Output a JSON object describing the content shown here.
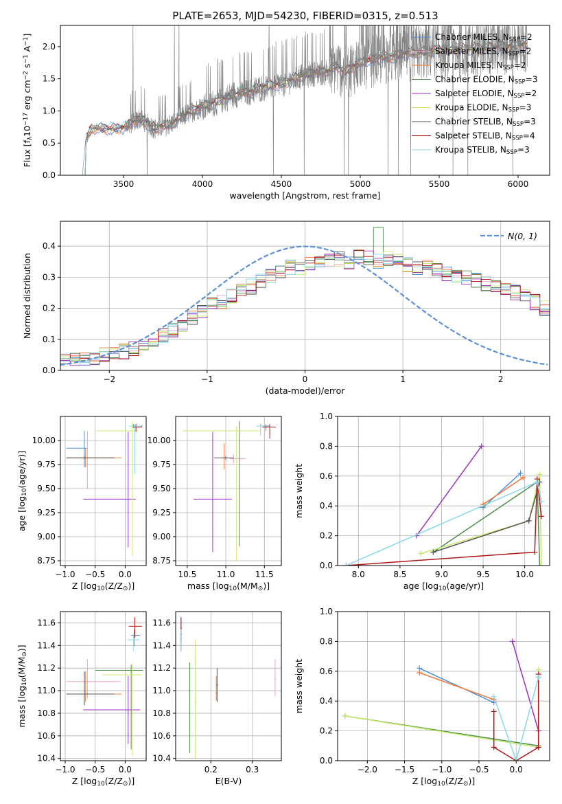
{
  "figure_title": "PLATE=2653, MJD=54230, FIBERID=0315, z=0.513",
  "model_colors": [
    "#4a90d9",
    "#e8a0c0",
    "#f07f3a",
    "#4f8f4f",
    "#9b30c0",
    "#c8e86a",
    "#555555",
    "#b01515",
    "#88d8e8"
  ],
  "model_names": [
    "Chabrier MILES, N$SSP$=2",
    "Salpeter MILES, N$SSP$=2",
    "Kroupa MILES, N$SSP$=2",
    "Chabrier ELODIE, N$SSP$=3",
    "Salpeter ELODIE, N$SSP$=2",
    "Kroupa ELODIE, N$SSP$=3",
    "Chabrier STELIB, N$SSP$=3",
    "Salpeter STELIB, N$SSP$=4",
    "Kroupa STELIB, N$SSP$=3"
  ],
  "chart_data": [
    {
      "id": "spectrum",
      "type": "line",
      "xlabel": "wavelength [Angstrom, rest frame]",
      "ylabel": "Flux [f$λ$10$-17$ erg cm$-2$ s$-1$ A$-1$]",
      "xlim": [
        3100,
        6200
      ],
      "ylim": [
        0,
        2.33
      ],
      "xticks": [
        3500,
        4000,
        4500,
        5000,
        5500,
        6000
      ],
      "yticks": [
        0.0,
        0.5,
        1.0,
        1.5,
        2.0
      ],
      "ytick_labels": [
        "0.0",
        "0.5",
        "1.0",
        "1.5",
        "2.0"
      ],
      "grid": false,
      "legend_position": "top-right",
      "continuum": {
        "x": [
          3240,
          3260,
          3300,
          3400,
          3500,
          3600,
          3650,
          3700,
          3800,
          3900,
          4000,
          4100,
          4200,
          4300,
          4400,
          4500,
          4600,
          4700,
          4800,
          4850,
          4900,
          5000,
          5100,
          5200,
          5300,
          5400,
          5500,
          5600,
          5700,
          5800,
          5900,
          6000,
          6060
        ],
        "y": [
          0.0,
          0.55,
          0.73,
          0.72,
          0.74,
          0.88,
          0.82,
          0.72,
          0.8,
          0.95,
          1.07,
          1.15,
          1.26,
          1.3,
          1.38,
          1.42,
          1.52,
          1.6,
          1.62,
          1.7,
          1.6,
          1.75,
          1.82,
          1.85,
          1.9,
          1.92,
          1.95,
          1.95,
          1.97,
          1.98,
          2.0,
          2.02,
          2.02
        ]
      },
      "data_range": [
        3520,
        6060
      ],
      "models_range": [
        3520,
        6060
      ]
    },
    {
      "id": "residuals",
      "type": "step",
      "xlabel": "(data-model)/error",
      "ylabel": "Normed distribution",
      "xlim": [
        -2.5,
        2.5
      ],
      "ylim": [
        0,
        0.48
      ],
      "xticks": [
        -2,
        -1,
        0,
        1,
        2
      ],
      "xtick_labels": [
        "−2",
        "−1",
        "0",
        "1",
        "2"
      ],
      "yticks": [
        0.0,
        0.1,
        0.2,
        0.3,
        0.4
      ],
      "ytick_labels": [
        "0.0",
        "0.1",
        "0.2",
        "0.3",
        "0.4"
      ],
      "grid": true,
      "legend": "$N$(0, 1)",
      "legend_position": "top-right",
      "bin_width": 0.1,
      "hist_values": [
        0.03,
        0.03,
        0.035,
        0.04,
        0.05,
        0.055,
        0.06,
        0.07,
        0.08,
        0.095,
        0.11,
        0.13,
        0.15,
        0.17,
        0.19,
        0.21,
        0.22,
        0.24,
        0.26,
        0.27,
        0.29,
        0.3,
        0.32,
        0.33,
        0.33,
        0.34,
        0.35,
        0.35,
        0.36,
        0.35,
        0.37,
        0.36,
        0.35,
        0.36,
        0.35,
        0.34,
        0.33,
        0.33,
        0.32,
        0.31,
        0.3,
        0.3,
        0.29,
        0.28,
        0.27,
        0.26,
        0.25,
        0.24,
        0.22,
        0.2
      ]
    },
    {
      "id": "age-vs-z",
      "type": "errorbar",
      "xlabel": "Z [log$10$(Z/Z$⊙$)]",
      "ylabel": "age  [log$10$(age/yr)]",
      "xlim": [
        -1.08,
        0.35
      ],
      "ylim": [
        8.7,
        10.25
      ],
      "xticks": [
        -1.0,
        -0.5,
        0.0
      ],
      "xtick_labels": [
        "−1.0",
        "−0.5",
        "0.0"
      ],
      "yticks": [
        8.75,
        9.0,
        9.25,
        9.5,
        9.75,
        10.0
      ],
      "ytick_labels": [
        "8.75",
        "9.00",
        "9.25",
        "9.50",
        "9.75",
        "10.00"
      ],
      "grid": true,
      "points": [
        {
          "m": 0,
          "x": -0.68,
          "y": 9.92,
          "xe": [
            0.3,
            0.04
          ],
          "ye": [
            0.2,
            0.18
          ]
        },
        {
          "m": 1,
          "x": -0.63,
          "y": 9.75,
          "xe": [
            0.04,
            0.04
          ],
          "ye": [
            0.25,
            0.35
          ]
        },
        {
          "m": 2,
          "x": -0.66,
          "y": 9.82,
          "xe": [
            0.32,
            0.6
          ],
          "ye": [
            0.1,
            0.1
          ]
        },
        {
          "m": 3,
          "x": 0.14,
          "y": 10.15,
          "xe": [
            0.05,
            0.15
          ],
          "ye": [
            0.02,
            0.02
          ]
        },
        {
          "m": 4,
          "x": 0.05,
          "y": 9.39,
          "xe": [
            0.75,
            0.13
          ],
          "ye": [
            0.5,
            0.7
          ]
        },
        {
          "m": 5,
          "x": 0.12,
          "y": 10.1,
          "xe": [
            0.6,
            0.1
          ],
          "ye": [
            1.3,
            0.1
          ]
        },
        {
          "m": 6,
          "x": -0.68,
          "y": 9.82,
          "xe": [
            0.3,
            0.5
          ],
          "ye": [
            0.02,
            0.02
          ]
        },
        {
          "m": 7,
          "x": 0.18,
          "y": 10.14,
          "xe": [
            0.05,
            0.1
          ],
          "ye": [
            0.05,
            0.03
          ]
        },
        {
          "m": 8,
          "x": 0.16,
          "y": 10.15,
          "xe": [
            0.1,
            0.1
          ],
          "ye": [
            0.5,
            0.02
          ]
        }
      ]
    },
    {
      "id": "age-vs-mass",
      "type": "errorbar",
      "xlabel": "mass [log$10$(M/M$⊙$)]",
      "ylabel": "",
      "xlim": [
        10.35,
        11.72
      ],
      "ylim": [
        8.7,
        10.25
      ],
      "xticks": [
        10.5,
        11.0,
        11.5
      ],
      "xtick_labels": [
        "10.5",
        "11.0",
        "11.5"
      ],
      "yticks": [
        8.75,
        9.0,
        9.25,
        9.5,
        9.75,
        10.0
      ],
      "ytick_labels": [
        "8.75",
        "9.00",
        "9.25",
        "9.50",
        "9.75",
        "10.00"
      ],
      "grid": true,
      "points": [
        {
          "m": 0,
          "x": 11.52,
          "y": 10.15,
          "xe": [
            0.1,
            0.05
          ],
          "ye": [
            0.05,
            0.02
          ]
        },
        {
          "m": 1,
          "x": 11.1,
          "y": 9.81,
          "xe": [
            0.05,
            0.15
          ],
          "ye": [
            0.05,
            0.05
          ]
        },
        {
          "m": 2,
          "x": 10.98,
          "y": 9.82,
          "xe": [
            0.03,
            0.03
          ],
          "ye": [
            0.12,
            0.15
          ]
        },
        {
          "m": 3,
          "x": 11.18,
          "y": 10.1,
          "xe": [
            0.02,
            0.02
          ],
          "ye": [
            1.2,
            0.1
          ]
        },
        {
          "m": 4,
          "x": 10.83,
          "y": 9.39,
          "xe": [
            0.25,
            0.25
          ],
          "ye": [
            0.55,
            0.7
          ]
        },
        {
          "m": 5,
          "x": 11.14,
          "y": 10.1,
          "xe": [
            0.7,
            0.3
          ],
          "ye": [
            1.35,
            0.05
          ]
        },
        {
          "m": 6,
          "x": 11.0,
          "y": 9.82,
          "xe": [
            0.15,
            0.1
          ],
          "ye": [
            0.02,
            0.02
          ]
        },
        {
          "m": 7,
          "x": 11.57,
          "y": 10.14,
          "xe": [
            0.1,
            0.08
          ],
          "ye": [
            0.12,
            0.03
          ]
        },
        {
          "m": 8,
          "x": 11.45,
          "y": 10.15,
          "xe": [
            0.06,
            0.06
          ],
          "ye": [
            0.1,
            0.02
          ]
        }
      ]
    },
    {
      "id": "weight-vs-age",
      "type": "line",
      "xlabel": "age  [log$10$(age/yr)]",
      "ylabel": "mass weight",
      "xlim": [
        7.75,
        10.3
      ],
      "ylim": [
        0,
        1
      ],
      "xticks": [
        8.0,
        8.5,
        9.0,
        9.5,
        10.0
      ],
      "xtick_labels": [
        "8.0",
        "8.5",
        "9.0",
        "9.5",
        "10.0"
      ],
      "yticks": [
        0.0,
        0.2,
        0.4,
        0.6,
        0.8,
        1.0
      ],
      "ytick_labels": [
        "0.0",
        "0.2",
        "0.4",
        "0.6",
        "0.8",
        "1.0"
      ],
      "grid": true,
      "series": [
        {
          "m": 0,
          "x": [
            9.5,
            9.95
          ],
          "y": [
            0.39,
            0.62
          ]
        },
        {
          "m": 1,
          "x": [
            9.5,
            9.98
          ],
          "y": [
            0.41,
            0.59
          ]
        },
        {
          "m": 2,
          "x": [
            9.5,
            9.98
          ],
          "y": [
            0.41,
            0.59
          ]
        },
        {
          "m": 3,
          "x": [
            8.9,
            10.15,
            10.18
          ],
          "y": [
            0.09,
            0.56,
            0.0
          ]
        },
        {
          "m": 4,
          "x": [
            8.7,
            9.48
          ],
          "y": [
            0.2,
            0.8
          ]
        },
        {
          "m": 5,
          "x": [
            8.75,
            10.05,
            10.18,
            10.2
          ],
          "y": [
            0.08,
            0.3,
            0.61,
            0.0
          ]
        },
        {
          "m": 6,
          "x": [
            8.9,
            10.05,
            10.18
          ],
          "y": [
            0.09,
            0.3,
            0.56
          ]
        },
        {
          "m": 7,
          "x": [
            7.85,
            10.12,
            10.15,
            10.2
          ],
          "y": [
            0.0,
            0.09,
            0.58,
            0.33
          ]
        },
        {
          "m": 8,
          "x": [
            7.85,
            10.15,
            10.2
          ],
          "y": [
            0.0,
            0.56,
            0.43
          ]
        }
      ]
    },
    {
      "id": "mass-vs-z",
      "type": "errorbar",
      "xlabel": "Z [log$10$(Z/Z$⊙$)]",
      "ylabel": "mass [log$10$(M/M$⊙$)]",
      "xlim": [
        -1.08,
        0.35
      ],
      "ylim": [
        10.38,
        11.7
      ],
      "xticks": [
        -1.0,
        -0.5,
        0.0
      ],
      "xtick_labels": [
        "−1.0",
        "−0.5",
        "0.0"
      ],
      "yticks": [
        10.4,
        10.6,
        10.8,
        11.0,
        11.2,
        11.4,
        11.6
      ],
      "ytick_labels": [
        "10.4",
        "10.6",
        "10.8",
        "11.0",
        "11.2",
        "11.4",
        "11.6"
      ],
      "grid": true,
      "points": [
        {
          "m": 0,
          "x": 0.15,
          "y": 11.49,
          "xe": [
            0.05,
            0.1
          ],
          "ye": [
            0.1,
            0.05
          ]
        },
        {
          "m": 1,
          "x": -0.63,
          "y": 11.08,
          "xe": [
            0.35,
            0.55
          ],
          "ye": [
            0.15,
            0.2
          ]
        },
        {
          "m": 2,
          "x": -0.66,
          "y": 10.97,
          "xe": [
            0.3,
            0.6
          ],
          "ye": [
            0.07,
            0.2
          ]
        },
        {
          "m": 3,
          "x": 0.1,
          "y": 11.18,
          "xe": [
            0.6,
            0.2
          ],
          "ye": [
            0.7,
            0.05
          ]
        },
        {
          "m": 4,
          "x": 0.05,
          "y": 10.83,
          "xe": [
            0.75,
            0.2
          ],
          "ye": [
            0.3,
            0.3
          ]
        },
        {
          "m": 5,
          "x": 0.12,
          "y": 11.14,
          "xe": [
            0.5,
            0.15
          ],
          "ye": [
            0.72,
            0.1
          ]
        },
        {
          "m": 6,
          "x": -0.68,
          "y": 10.97,
          "xe": [
            0.3,
            0.5
          ],
          "ye": [
            0.1,
            0.2
          ]
        },
        {
          "m": 7,
          "x": 0.16,
          "y": 11.57,
          "xe": [
            0.1,
            0.12
          ],
          "ye": [
            0.1,
            0.08
          ]
        },
        {
          "m": 8,
          "x": 0.14,
          "y": 11.45,
          "xe": [
            0.1,
            0.1
          ],
          "ye": [
            0.1,
            0.05
          ]
        }
      ]
    },
    {
      "id": "mass-vs-ebv",
      "type": "errorbar",
      "xlabel": "E(B-V)",
      "ylabel": "",
      "xlim": [
        0.115,
        0.37
      ],
      "ylim": [
        10.38,
        11.7
      ],
      "xticks": [
        0.2,
        0.3
      ],
      "xtick_labels": [
        "0.2",
        "0.3"
      ],
      "yticks": [
        10.4,
        10.6,
        10.8,
        11.0,
        11.2,
        11.4,
        11.6
      ],
      "ytick_labels": [
        "10.4",
        "10.6",
        "10.8",
        "11.0",
        "11.2",
        "11.4",
        "11.6"
      ],
      "grid": true,
      "points": [
        {
          "m": 0,
          "x": 0.128,
          "y": 11.5,
          "xe": [
            0.002,
            0.002
          ],
          "ye": [
            0.15,
            0.1
          ]
        },
        {
          "m": 1,
          "x": 0.355,
          "y": 11.1,
          "xe": [
            0.002,
            0.002
          ],
          "ye": [
            0.15,
            0.18
          ]
        },
        {
          "m": 2,
          "x": 0.213,
          "y": 10.98,
          "xe": [
            0.002,
            0.002
          ],
          "ye": [
            0.07,
            0.15
          ]
        },
        {
          "m": 3,
          "x": 0.149,
          "y": 11.0,
          "xe": [
            0.002,
            0.002
          ],
          "ye": [
            0.55,
            0.25
          ]
        },
        {
          "m": 4,
          "x": 0.128,
          "y": 11.45,
          "xe": [
            0.002,
            0.002
          ],
          "ye": [
            0.1,
            0.2
          ]
        },
        {
          "m": 5,
          "x": 0.162,
          "y": 10.9,
          "xe": [
            0.002,
            0.002
          ],
          "ye": [
            0.5,
            0.55
          ]
        },
        {
          "m": 6,
          "x": 0.215,
          "y": 11.05,
          "xe": [
            0.002,
            0.002
          ],
          "ye": [
            0.15,
            0.15
          ]
        },
        {
          "m": 7,
          "x": 0.128,
          "y": 11.55,
          "xe": [
            0.002,
            0.002
          ],
          "ye": [
            0.1,
            0.1
          ]
        },
        {
          "m": 8,
          "x": 0.128,
          "y": 11.45,
          "xe": [
            0.002,
            0.002
          ],
          "ye": [
            0.1,
            0.1
          ]
        }
      ]
    },
    {
      "id": "weight-vs-z",
      "type": "line",
      "xlabel": "Z [log$10$(Z/Z$⊙$)]",
      "ylabel": "mass weight",
      "xlim": [
        -2.4,
        0.45
      ],
      "ylim": [
        0,
        1
      ],
      "xticks": [
        -2.0,
        -1.5,
        -1.0,
        -0.5,
        0.0
      ],
      "xtick_labels": [
        "−2.0",
        "−1.5",
        "−1.0",
        "−0.5",
        "0.0"
      ],
      "yticks": [
        0.0,
        0.2,
        0.4,
        0.6,
        0.8,
        1.0
      ],
      "ytick_labels": [
        "0.0",
        "0.2",
        "0.4",
        "0.6",
        "0.8",
        "1.0"
      ],
      "grid": true,
      "series": [
        {
          "m": 0,
          "x": [
            -1.3,
            -0.3
          ],
          "y": [
            0.62,
            0.39
          ]
        },
        {
          "m": 1,
          "x": [
            -1.3,
            -0.3
          ],
          "y": [
            0.59,
            0.41
          ]
        },
        {
          "m": 2,
          "x": [
            -1.3,
            -0.3
          ],
          "y": [
            0.59,
            0.41
          ]
        },
        {
          "m": 3,
          "x": [
            -2.3,
            0.3
          ],
          "y": [
            0.3,
            0.1
          ]
        },
        {
          "m": 4,
          "x": [
            -0.05,
            0.3
          ],
          "y": [
            0.8,
            0.2
          ]
        },
        {
          "m": 5,
          "x": [
            -2.3,
            0.3,
            0.3
          ],
          "y": [
            0.3,
            0.09,
            0.61
          ]
        },
        {
          "m": 6,
          "x": [
            0.3,
            0.3
          ],
          "y": [
            0.56,
            0.09
          ]
        },
        {
          "m": 7,
          "x": [
            -0.3,
            -0.3,
            0.0,
            0.3,
            0.3
          ],
          "y": [
            0.33,
            0.09,
            0.0,
            0.09,
            0.58
          ]
        },
        {
          "m": 8,
          "x": [
            -0.3,
            0.0,
            0.3
          ],
          "y": [
            0.43,
            0.0,
            0.56
          ]
        }
      ]
    }
  ]
}
